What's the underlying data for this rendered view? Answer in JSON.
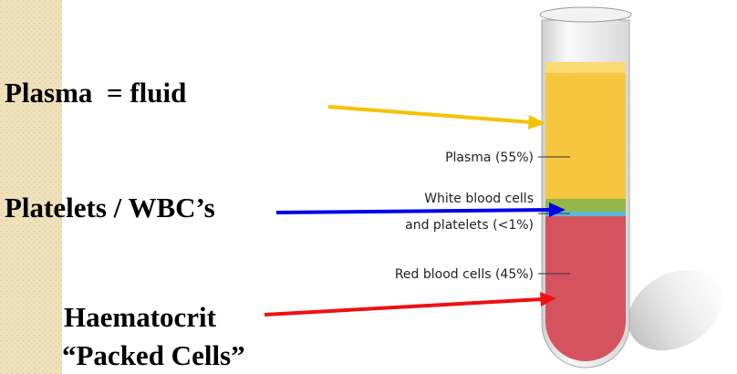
{
  "left_labels": {
    "plasma": "Plasma  = fluid",
    "platelets": "Platelets / WBC’s",
    "haematocrit": "Haematocrit",
    "packed_cells": "“Packed Cells”"
  },
  "tube_labels": {
    "plasma": "Plasma (55%)",
    "wbc_line1": "White blood cells",
    "wbc_line2": "and platelets (<1%)",
    "rbc": "Red blood cells (45%)"
  }
}
